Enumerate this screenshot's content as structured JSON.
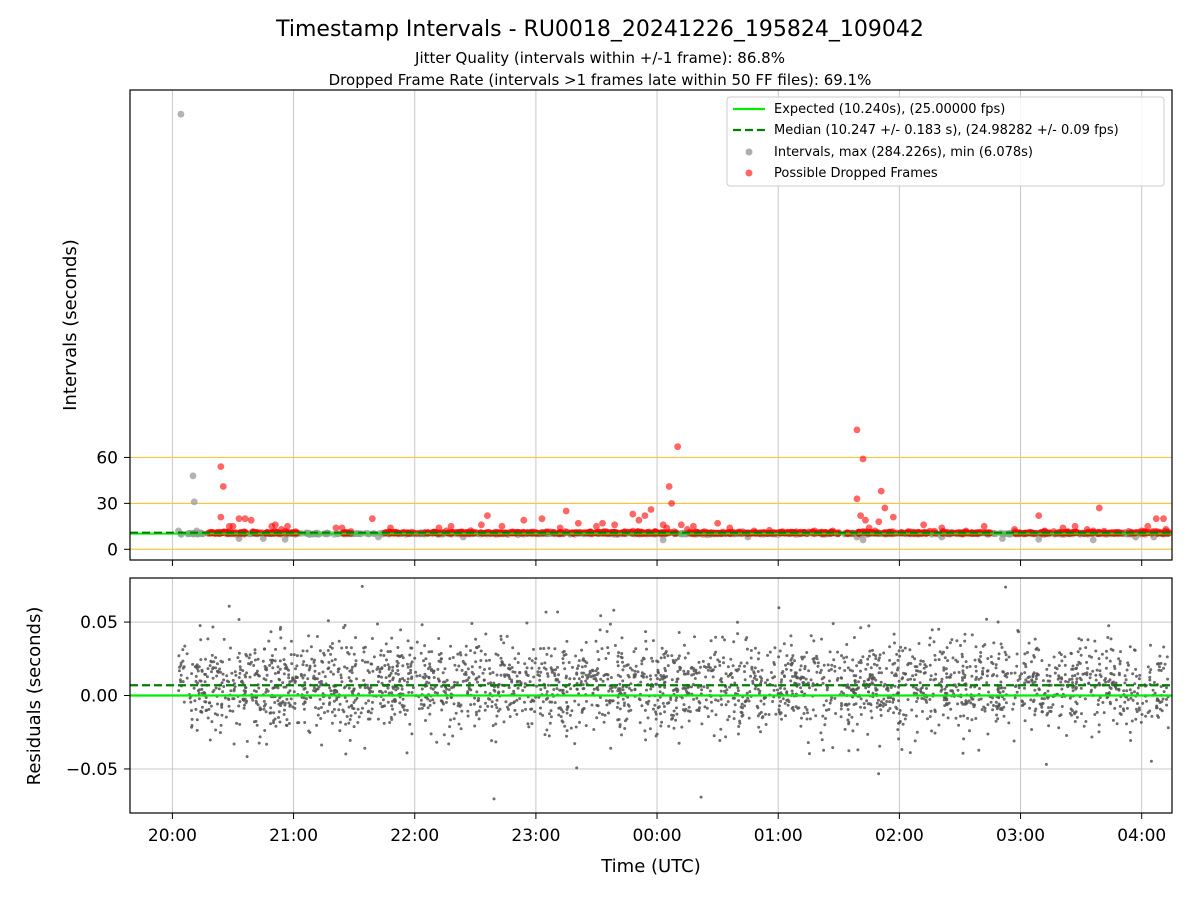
{
  "title": "Timestamp Intervals - RU0018_20241226_195824_109042",
  "subtitle1": "Jitter Quality (intervals within +/-1 frame): 86.8%",
  "subtitle2": "Dropped Frame Rate (intervals >1 frames late within 50 FF files): 69.1%",
  "colors": {
    "expected": "#00ee00",
    "median": "#007f00",
    "intervals": "#999999",
    "dropped": "#ff0000",
    "threshold": "#f5c842",
    "residual": "#555555",
    "grid": "#c8c8c8"
  },
  "chart_data": [
    {
      "type": "scatter",
      "ylabel": "Intervals (seconds)",
      "xlim": [
        -0.35,
        8.25
      ],
      "ylim": [
        -7,
        300
      ],
      "y_ticks": [
        0,
        30,
        60
      ],
      "threshold_lines": [
        0,
        30,
        60
      ],
      "grid": true,
      "legend_position": "top-right",
      "legend": [
        "Expected (10.240s), (25.00000 fps)",
        "Median (10.247 +/- 0.183 s), (24.98282 +/- 0.09 fps)",
        "Intervals, max (284.226s), min (6.078s)",
        "Possible Dropped Frames"
      ],
      "expected_value": 10.24,
      "median_value": 10.247,
      "series": [
        {
          "name": "Intervals, max (284.226s), min (6.078s)",
          "points": [
            [
              0.07,
              284.2
            ],
            [
              0.17,
              48
            ],
            [
              0.18,
              31
            ],
            [
              0.05,
              12
            ],
            [
              0.2,
              12
            ],
            [
              0.55,
              7
            ],
            [
              0.75,
              7
            ],
            [
              0.93,
              6.5
            ],
            [
              1.7,
              8
            ],
            [
              2.4,
              8
            ],
            [
              4.05,
              6.1
            ],
            [
              4.75,
              8
            ],
            [
              5.65,
              8
            ],
            [
              5.7,
              6.1
            ],
            [
              6.35,
              8
            ],
            [
              6.85,
              7
            ],
            [
              7.15,
              6.5
            ],
            [
              7.6,
              6.1
            ],
            [
              7.95,
              8
            ],
            [
              8.1,
              8
            ]
          ]
        },
        {
          "name": "Possible Dropped Frames",
          "points": [
            [
              0.4,
              54
            ],
            [
              0.42,
              41
            ],
            [
              0.4,
              21
            ],
            [
              0.47,
              15
            ],
            [
              0.5,
              15
            ],
            [
              0.55,
              20
            ],
            [
              0.6,
              20
            ],
            [
              0.65,
              19
            ],
            [
              0.82,
              15
            ],
            [
              0.85,
              16
            ],
            [
              0.9,
              13
            ],
            [
              0.95,
              15
            ],
            [
              1.35,
              14
            ],
            [
              1.4,
              14
            ],
            [
              1.65,
              20
            ],
            [
              1.8,
              14
            ],
            [
              2.2,
              14
            ],
            [
              2.3,
              15
            ],
            [
              2.55,
              16
            ],
            [
              2.6,
              22
            ],
            [
              2.72,
              15
            ],
            [
              2.9,
              19
            ],
            [
              3.05,
              20
            ],
            [
              3.2,
              14
            ],
            [
              3.25,
              25
            ],
            [
              3.35,
              17
            ],
            [
              3.5,
              15
            ],
            [
              3.55,
              17
            ],
            [
              3.65,
              16
            ],
            [
              3.8,
              23
            ],
            [
              3.85,
              19
            ],
            [
              3.9,
              22
            ],
            [
              3.95,
              26
            ],
            [
              4.05,
              16
            ],
            [
              4.08,
              14
            ],
            [
              4.1,
              41
            ],
            [
              4.12,
              30
            ],
            [
              4.17,
              67
            ],
            [
              4.2,
              16
            ],
            [
              4.25,
              13
            ],
            [
              4.3,
              15
            ],
            [
              4.5,
              17
            ],
            [
              4.6,
              14
            ],
            [
              4.8,
              12
            ],
            [
              5.3,
              12
            ],
            [
              5.45,
              12
            ],
            [
              5.65,
              33
            ],
            [
              5.65,
              78
            ],
            [
              5.7,
              59
            ],
            [
              5.68,
              22
            ],
            [
              5.72,
              19
            ],
            [
              5.75,
              14
            ],
            [
              5.8,
              12
            ],
            [
              5.83,
              18
            ],
            [
              5.85,
              38
            ],
            [
              5.88,
              27
            ],
            [
              5.95,
              21
            ],
            [
              6.2,
              16
            ],
            [
              6.35,
              14
            ],
            [
              6.55,
              12
            ],
            [
              6.7,
              15
            ],
            [
              6.95,
              13
            ],
            [
              7.15,
              22
            ],
            [
              7.2,
              12
            ],
            [
              7.35,
              14
            ],
            [
              7.45,
              15
            ],
            [
              7.55,
              13
            ],
            [
              7.6,
              12
            ],
            [
              7.65,
              27
            ],
            [
              8.0,
              12
            ],
            [
              8.05,
              15
            ],
            [
              8.12,
              20
            ],
            [
              8.18,
              20
            ],
            [
              8.2,
              13
            ]
          ]
        }
      ]
    },
    {
      "type": "scatter",
      "ylabel": "Residuals (seconds)",
      "xlabel": "Time (UTC)",
      "xlim": [
        -0.35,
        8.25
      ],
      "ylim": [
        -0.08,
        0.08
      ],
      "y_ticks": [
        -0.05,
        0.0,
        0.05
      ],
      "y_tick_labels": [
        "−0.05",
        "0.00",
        "0.05"
      ],
      "x_ticks": [
        0,
        1,
        2,
        3,
        4,
        5,
        6,
        7,
        8
      ],
      "x_tick_labels": [
        "20:00",
        "21:00",
        "22:00",
        "23:00",
        "00:00",
        "01:00",
        "02:00",
        "03:00",
        "04:00"
      ],
      "grid": true,
      "expected_value": 0.0,
      "median_value": 0.007,
      "residual_spread": 0.015,
      "sample_count": 2800
    }
  ]
}
